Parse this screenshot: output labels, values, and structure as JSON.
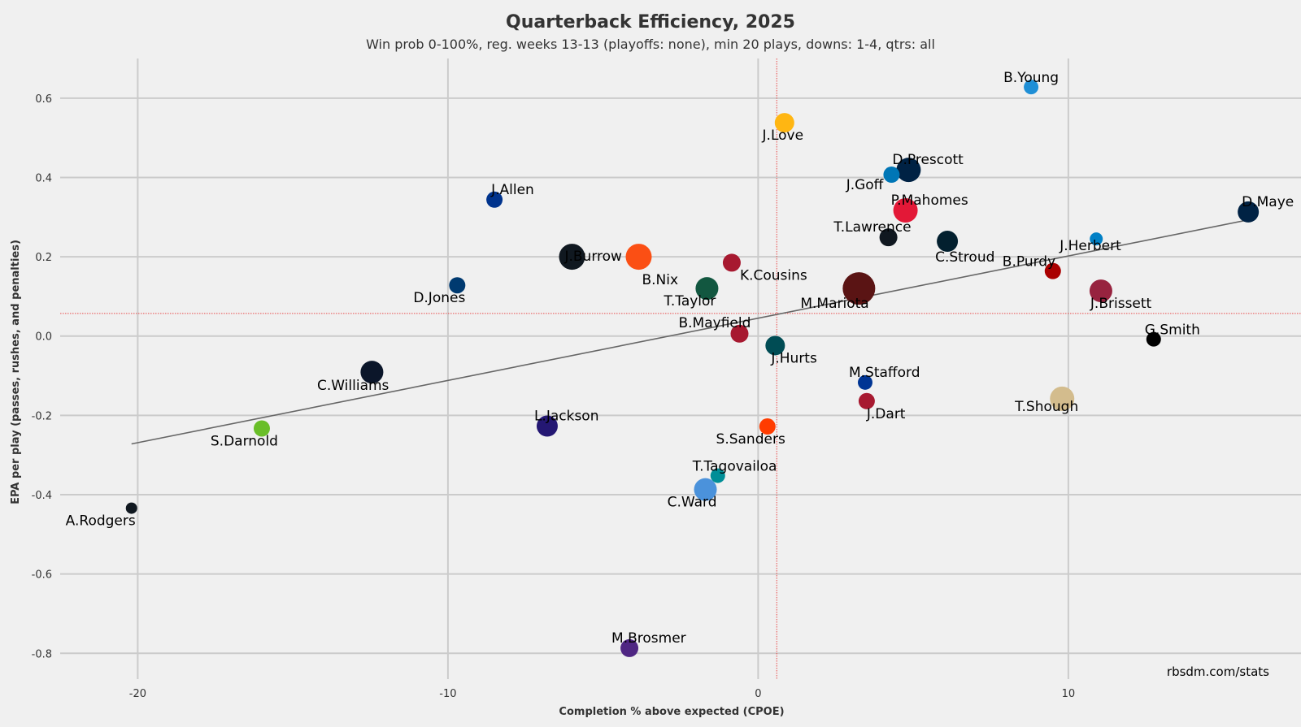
{
  "chart_data": {
    "type": "scatter",
    "title": "Quarterback Efficiency, 2025",
    "subtitle": "Win prob 0-100%, reg. weeks 13-13 (playoffs: none), min 20 plays, downs: 1-4, qtrs: all",
    "xlabel": "Completion % above expected (CPOE)",
    "ylabel": "EPA per play (passes, rushes, and penalties)",
    "credit": "rbsdm.com/stats",
    "xlim": [
      -22.5,
      17.5
    ],
    "ylim": [
      -0.865,
      0.7
    ],
    "x_ticks": [
      -20,
      -10,
      0,
      10
    ],
    "y_ticks": [
      -0.8,
      -0.6,
      -0.4,
      -0.2,
      0.0,
      0.2,
      0.4,
      0.6
    ],
    "x_tick_labels": [
      "-20",
      "-10",
      "0",
      "10"
    ],
    "y_tick_labels": [
      "-0.8",
      "-0.6",
      "-0.4",
      "-0.2",
      "0.0",
      "0.2",
      "0.4",
      "0.6"
    ],
    "grid": true,
    "mean_x": 0.6,
    "mean_y": 0.057,
    "trendline": {
      "x": [
        -20.2,
        15.8
      ],
      "y": [
        -0.272,
        0.293
      ]
    },
    "points": [
      {
        "name": "B.Young",
        "x": 8.8,
        "y": 0.628,
        "size": 9,
        "color": "#1f8fd6"
      },
      {
        "name": "J.Love",
        "x": 0.85,
        "y": 0.538,
        "size": 12,
        "color": "#ffb612"
      },
      {
        "name": "D.Prescott",
        "x": 4.85,
        "y": 0.419,
        "size": 15,
        "color": "#002244"
      },
      {
        "name": "J.Goff",
        "x": 4.3,
        "y": 0.407,
        "size": 10,
        "color": "#0076b6"
      },
      {
        "name": "J.Allen",
        "x": -8.5,
        "y": 0.344,
        "size": 10,
        "color": "#00338d"
      },
      {
        "name": "P.Mahomes",
        "x": 4.75,
        "y": 0.317,
        "size": 15,
        "color": "#e31837"
      },
      {
        "name": "D.Maye",
        "x": 15.8,
        "y": 0.313,
        "size": 13,
        "color": "#002244"
      },
      {
        "name": "T.Lawrence",
        "x": 4.2,
        "y": 0.249,
        "size": 11,
        "color": "#101820"
      },
      {
        "name": "J.Herbert",
        "x": 10.9,
        "y": 0.245,
        "size": 8,
        "color": "#0080c6"
      },
      {
        "name": "C.Stroud",
        "x": 6.1,
        "y": 0.239,
        "size": 13,
        "color": "#03202f"
      },
      {
        "name": "J.Burrow",
        "x": -6.0,
        "y": 0.2,
        "size": 16,
        "color": "#101820"
      },
      {
        "name": "B.Nix",
        "x": -3.85,
        "y": 0.2,
        "size": 16,
        "color": "#fb4f14"
      },
      {
        "name": "K.Cousins",
        "x": -0.85,
        "y": 0.185,
        "size": 11,
        "color": "#a71930"
      },
      {
        "name": "B.Purdy",
        "x": 9.5,
        "y": 0.164,
        "size": 10,
        "color": "#aa0000"
      },
      {
        "name": "T.Taylor",
        "x": -1.65,
        "y": 0.12,
        "size": 14,
        "color": "#125740"
      },
      {
        "name": "M.Mariota",
        "x": 3.25,
        "y": 0.12,
        "size": 20,
        "color": "#5a1414"
      },
      {
        "name": "J.Brissett",
        "x": 11.05,
        "y": 0.114,
        "size": 14,
        "color": "#97233f"
      },
      {
        "name": "D.Jones",
        "x": -9.7,
        "y": 0.128,
        "size": 10,
        "color": "#003a70"
      },
      {
        "name": "B.Mayfield",
        "x": -0.6,
        "y": 0.006,
        "size": 11,
        "color": "#a71930"
      },
      {
        "name": "G.Smith",
        "x": 12.75,
        "y": -0.008,
        "size": 9,
        "color": "#000000"
      },
      {
        "name": "J.Hurts",
        "x": 0.55,
        "y": -0.024,
        "size": 12,
        "color": "#004c54"
      },
      {
        "name": "C.Williams",
        "x": -12.45,
        "y": -0.091,
        "size": 14,
        "color": "#0b162a"
      },
      {
        "name": "M.Stafford",
        "x": 3.45,
        "y": -0.117,
        "size": 9,
        "color": "#003594"
      },
      {
        "name": "J.Dart",
        "x": 3.5,
        "y": -0.164,
        "size": 10,
        "color": "#a71930"
      },
      {
        "name": "T.Shough",
        "x": 9.8,
        "y": -0.158,
        "size": 15,
        "color": "#d3bc8d"
      },
      {
        "name": "L.Jackson",
        "x": -6.8,
        "y": -0.227,
        "size": 13,
        "color": "#241773"
      },
      {
        "name": "S.Darnold",
        "x": -16.0,
        "y": -0.233,
        "size": 10,
        "color": "#69be28"
      },
      {
        "name": "S.Sanders",
        "x": 0.3,
        "y": -0.228,
        "size": 10,
        "color": "#ff3c00"
      },
      {
        "name": "T.Tagovailoa",
        "x": -1.3,
        "y": -0.352,
        "size": 9,
        "color": "#008e97"
      },
      {
        "name": "C.Ward",
        "x": -1.7,
        "y": -0.387,
        "size": 14,
        "color": "#4b92db"
      },
      {
        "name": "A.Rodgers",
        "x": -20.2,
        "y": -0.434,
        "size": 7,
        "color": "#101820"
      },
      {
        "name": "M.Brosmer",
        "x": -4.15,
        "y": -0.787,
        "size": 11,
        "color": "#4f2683"
      }
    ]
  }
}
